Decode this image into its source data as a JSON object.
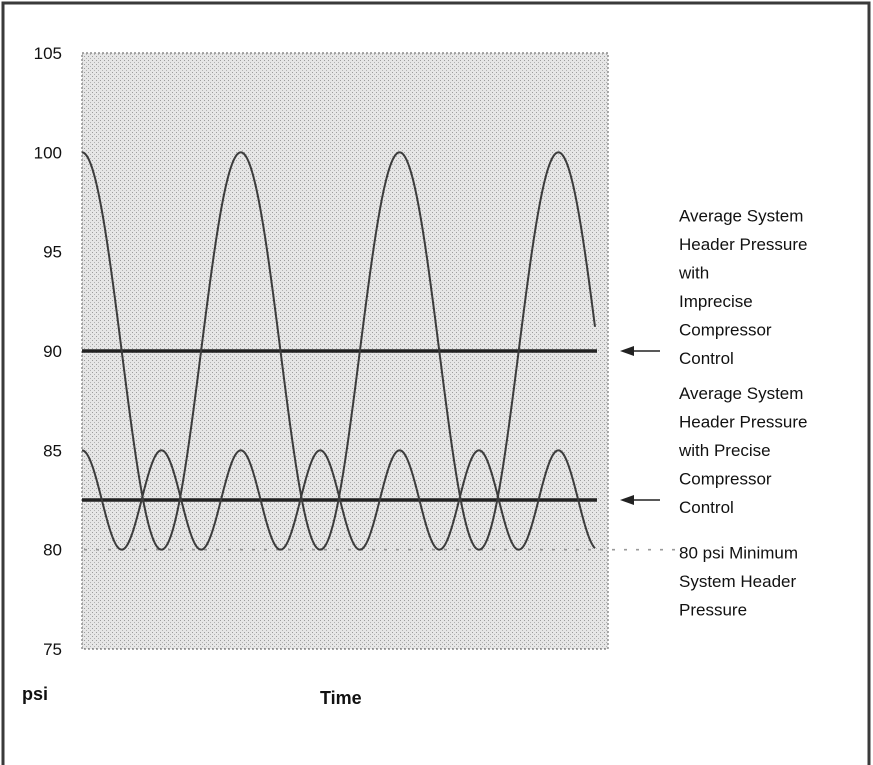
{
  "chart_data": {
    "type": "line",
    "title": "",
    "xlabel": "Time",
    "ylabel": "psi",
    "ylim": [
      75,
      105
    ],
    "yticks": [
      75,
      80,
      85,
      90,
      95,
      100,
      105
    ],
    "xlim": [
      0,
      13.25
    ],
    "grid": false,
    "series": [
      {
        "description": "imprecise compressor control pressure oscillation",
        "min": 80,
        "max": 100,
        "period": 4,
        "start_phase": "peak"
      },
      {
        "description": "precise compressor control pressure oscillation",
        "min": 80,
        "max": 85,
        "period": 2,
        "start_phase": "peak"
      }
    ],
    "reference_lines": [
      {
        "y": 90,
        "style": "solid"
      },
      {
        "y": 82.5,
        "style": "solid"
      },
      {
        "y": 80,
        "style": "dashed"
      }
    ],
    "annotations": [
      {
        "target_y": 90,
        "arrow": true,
        "lines": [
          "Average System",
          "Header Pressure",
          "with",
          "Imprecise",
          "Compressor",
          "Control"
        ]
      },
      {
        "target_y": 82.5,
        "arrow": true,
        "lines": [
          "Average System",
          "Header Pressure",
          "with Precise",
          "Compressor",
          "Control"
        ]
      },
      {
        "target_y": 80,
        "arrow": false,
        "lines": [
          "80 psi Minimum",
          "System Header",
          "Pressure"
        ]
      }
    ]
  }
}
